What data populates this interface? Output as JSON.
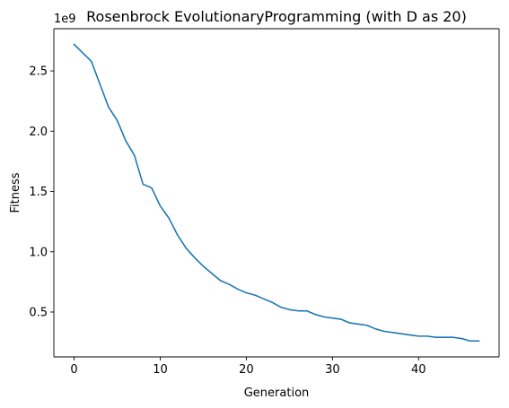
{
  "chart_data": {
    "type": "line",
    "title": "Rosenbrock EvolutionaryProgramming  (with D as 20)",
    "xlabel": "Generation",
    "ylabel": "Fitness",
    "y_offset_label": "1e9",
    "xlim": [
      -2.35,
      49.35
    ],
    "ylim": [
      0.128,
      2.85
    ],
    "x_ticks": [
      0,
      10,
      20,
      30,
      40
    ],
    "x_tick_labels": [
      "0",
      "10",
      "20",
      "30",
      "40"
    ],
    "y_ticks": [
      0.5,
      1.0,
      1.5,
      2.0,
      2.5
    ],
    "y_tick_labels": [
      "0.5",
      "1.0",
      "1.5",
      "2.0",
      "2.5"
    ],
    "grid": false,
    "series": [
      {
        "color": "#1f77b4",
        "x": [
          0,
          1,
          2,
          3,
          4,
          5,
          6,
          7,
          8,
          9,
          10,
          11,
          12,
          13,
          14,
          15,
          16,
          17,
          18,
          19,
          20,
          21,
          22,
          23,
          24,
          25,
          26,
          27,
          28,
          29,
          30,
          31,
          32,
          33,
          34,
          35,
          36,
          37,
          38,
          39,
          40,
          41,
          42,
          43,
          44,
          45,
          46,
          47
        ],
        "values": [
          2.72,
          2.65,
          2.58,
          2.39,
          2.2,
          2.09,
          1.92,
          1.8,
          1.56,
          1.53,
          1.38,
          1.28,
          1.14,
          1.03,
          0.95,
          0.88,
          0.82,
          0.76,
          0.73,
          0.69,
          0.66,
          0.64,
          0.61,
          0.58,
          0.54,
          0.52,
          0.51,
          0.51,
          0.48,
          0.46,
          0.45,
          0.44,
          0.41,
          0.4,
          0.39,
          0.36,
          0.34,
          0.33,
          0.32,
          0.31,
          0.3,
          0.3,
          0.29,
          0.29,
          0.29,
          0.28,
          0.26,
          0.26
        ]
      }
    ]
  }
}
